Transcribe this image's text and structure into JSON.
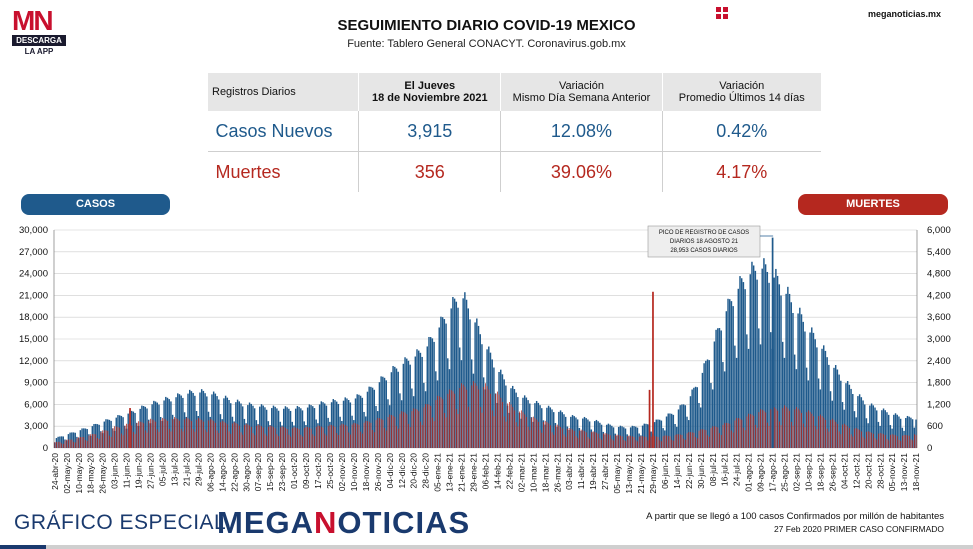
{
  "brand": {
    "logo_text": "MN",
    "logo_bar": "DESCARGA",
    "logo_sub": "LA APP",
    "site": "meganoticias.mx"
  },
  "header": {
    "title": "SEGUIMIENTO DIARIO COVID-19 MEXICO",
    "subtitle": "Fuente: Tablero General CONACYT. Coronavirus.gob.mx"
  },
  "table": {
    "headers": [
      "Registros Diarios",
      "El Jueves 18 de Noviembre 2021",
      "Variación Mismo Día Semana Anterior",
      "Variación Promedio Últimos 14 días"
    ],
    "header_lines": {
      "h1a": "El Jueves",
      "h1b": "18 de Noviembre 2021",
      "h2a": "Variación",
      "h2b": "Mismo Día Semana Anterior",
      "h3a": "Variación",
      "h3b": "Promedio Últimos 14 días"
    },
    "rows": [
      {
        "label": "Casos Nuevos",
        "value": "3,915",
        "var_week": "12.08%",
        "var_14": "0.42%"
      },
      {
        "label": "Muertes",
        "value": "356",
        "var_week": "39.06%",
        "var_14": "4.17%"
      }
    ]
  },
  "legend": {
    "casos": "CASOS",
    "muertes": "MUERTES"
  },
  "colors": {
    "casos": "#1f5a8c",
    "muertes": "#b5281f",
    "brand": "#1a3a6e",
    "accent": "#c8102e"
  },
  "chart_data": {
    "type": "bar",
    "title": "",
    "left_axis": {
      "series": "CASOS",
      "min": 0,
      "max": 30000,
      "ticks": [
        0,
        3000,
        6000,
        9000,
        12000,
        15000,
        18000,
        21000,
        24000,
        27000,
        30000
      ],
      "tick_labels": [
        "0",
        "3,000",
        "6,000",
        "9,000",
        "12,000",
        "15,000",
        "18,000",
        "21,000",
        "24,000",
        "27,000",
        "30,000"
      ]
    },
    "right_axis": {
      "series": "MUERTES",
      "min": 0,
      "max": 6000,
      "ticks": [
        0,
        600,
        1200,
        1800,
        2400,
        3000,
        3600,
        4200,
        4800,
        5400,
        6000
      ],
      "tick_labels": [
        "0",
        "600",
        "1,200",
        "1,800",
        "2,400",
        "3,000",
        "3,600",
        "4,200",
        "4,800",
        "5,400",
        "6,000"
      ]
    },
    "x_tick_labels": [
      "24-abr-20",
      "02-may-20",
      "10-may-20",
      "18-may-20",
      "26-may-20",
      "03-jun-20",
      "11-jun-20",
      "19-jun-20",
      "27-jun-20",
      "05-jul-20",
      "13-jul-20",
      "21-jul-20",
      "29-jul-20",
      "06-ago-20",
      "14-ago-20",
      "22-ago-20",
      "30-ago-20",
      "07-sep-20",
      "15-sep-20",
      "23-sep-20",
      "01-oct-20",
      "09-oct-20",
      "17-oct-20",
      "25-oct-20",
      "02-nov-20",
      "10-nov-20",
      "18-nov-20",
      "26-nov-20",
      "04-dic-20",
      "12-dic-20",
      "20-dic-20",
      "28-dic-20",
      "05-ene-21",
      "13-ene-21",
      "21-ene-21",
      "29-ene-21",
      "06-feb-21",
      "14-feb-21",
      "22-feb-21",
      "02-mar-21",
      "10-mar-21",
      "18-mar-21",
      "26-mar-21",
      "03-abr-21",
      "11-abr-21",
      "19-abr-21",
      "27-abr-21",
      "05-may-21",
      "13-may-21",
      "21-may-21",
      "29-may-21",
      "06-jun-21",
      "14-jun-21",
      "22-jun-21",
      "30-jun-21",
      "08-jul-21",
      "16-jul-21",
      "24-jul-21",
      "01-ago-21",
      "09-ago-21",
      "17-ago-21",
      "25-ago-21",
      "02-sep-21",
      "10-sep-21",
      "18-sep-21",
      "26-sep-21",
      "04-oct-21",
      "12-oct-21",
      "20-oct-21",
      "28-oct-21",
      "05-nov-21",
      "13-nov-21",
      "18-nov-21"
    ],
    "casos_weekly": [
      1200,
      1700,
      2200,
      2700,
      3300,
      3800,
      4300,
      4900,
      5500,
      6000,
      6400,
      6900,
      7100,
      6900,
      6400,
      5900,
      5500,
      5300,
      5100,
      5000,
      5000,
      5100,
      5500,
      5800,
      6000,
      6200,
      7000,
      8200,
      9500,
      10600,
      11500,
      12600,
      15000,
      17500,
      19500,
      16500,
      13000,
      10000,
      7800,
      6500,
      5800,
      5200,
      4700,
      4000,
      3800,
      3500,
      3000,
      2700,
      2600,
      2800,
      3200,
      3900,
      4700,
      6200,
      9000,
      13000,
      17000,
      20000,
      22000,
      23000,
      22000,
      20000,
      17500,
      15000,
      13000,
      10500,
      8500,
      6800,
      5500,
      4900,
      4300,
      3800,
      3915
    ],
    "muertes_weekly": [
      140,
      200,
      260,
      330,
      420,
      520,
      580,
      640,
      700,
      720,
      740,
      730,
      720,
      700,
      650,
      620,
      580,
      560,
      540,
      520,
      500,
      510,
      540,
      560,
      580,
      600,
      650,
      720,
      800,
      880,
      950,
      1050,
      1250,
      1400,
      1550,
      1600,
      1550,
      1350,
      1100,
      900,
      750,
      650,
      560,
      480,
      440,
      400,
      360,
      320,
      300,
      290,
      290,
      300,
      330,
      380,
      450,
      520,
      600,
      720,
      820,
      930,
      1000,
      1020,
      980,
      900,
      800,
      700,
      580,
      480,
      400,
      360,
      330,
      310,
      356
    ],
    "spikes": [
      {
        "series": "CASOS",
        "x": "17-ago-21",
        "value": 28953
      },
      {
        "series": "MUERTES",
        "x": "05-jun-20",
        "value": 1100
      },
      {
        "series": "MUERTES",
        "x": "09-abr-21",
        "value": 1600
      },
      {
        "series": "MUERTES",
        "x": "29-may-21",
        "value": 4300
      }
    ],
    "annotation": [
      "PICO DE REGISTRO DE CASOS",
      "DIARIOS 18 AGOSTO 21",
      "28,953 CASOS DIARIOS"
    ]
  },
  "footer": {
    "left": "GRÁFICO ESPECIAL",
    "brand_a": "MEGA",
    "brand_b": "N",
    "brand_c": "OTICIAS",
    "note1": "A partir que se llegó a 100 casos Confirmados por millón de habitantes",
    "note2": "27 Feb 2020 PRIMER CASO CONFIRMADO"
  }
}
